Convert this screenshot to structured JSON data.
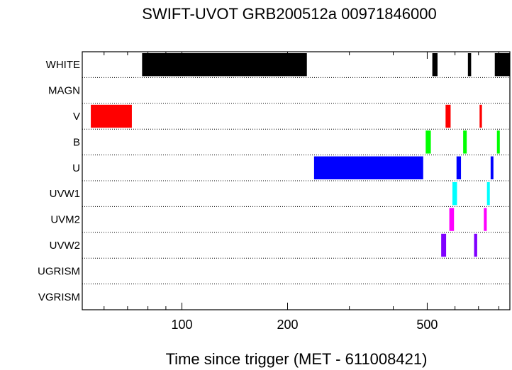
{
  "chart_data": {
    "type": "bar",
    "title": "SWIFT-UVOT GRB200512a 00971846000",
    "xlabel": "Time since trigger (MET - 611008421)",
    "ylabel": "",
    "x_scale": "log",
    "xlim": [
      52,
      860
    ],
    "xticks": [
      100,
      200,
      500
    ],
    "tick_labels": [
      "100",
      "200",
      "500"
    ],
    "grid": "dotted row separators",
    "categories": [
      "WHITE",
      "MAGN",
      "V",
      "B",
      "U",
      "UVW1",
      "UVM2",
      "UVW2",
      "UGRISM",
      "VGRISM"
    ],
    "series": [
      {
        "filter": "WHITE",
        "color": "#000000",
        "intervals": [
          [
            77,
            227
          ],
          [
            517,
            535
          ],
          [
            653,
            667
          ],
          [
            779,
            860
          ]
        ]
      },
      {
        "filter": "MAGN",
        "color": "#000000",
        "intervals": []
      },
      {
        "filter": "V",
        "color": "#ff0000",
        "intervals": [
          [
            55,
            72
          ],
          [
            564,
            583
          ],
          [
            705,
            716
          ]
        ]
      },
      {
        "filter": "B",
        "color": "#00ff00",
        "intervals": [
          [
            495,
            512
          ],
          [
            633,
            648
          ],
          [
            790,
            805
          ]
        ]
      },
      {
        "filter": "U",
        "color": "#0000ff",
        "intervals": [
          [
            238,
            487
          ],
          [
            606,
            624
          ],
          [
            758,
            772
          ]
        ]
      },
      {
        "filter": "UVW1",
        "color": "#00ffff",
        "intervals": [
          [
            590,
            608
          ],
          [
            740,
            754
          ]
        ]
      },
      {
        "filter": "UVM2",
        "color": "#ff00ff",
        "intervals": [
          [
            578,
            596
          ],
          [
            725,
            739
          ]
        ]
      },
      {
        "filter": "UVW2",
        "color": "#8000ff",
        "intervals": [
          [
            548,
            566
          ],
          [
            680,
            694
          ]
        ]
      },
      {
        "filter": "UGRISM",
        "color": "#000000",
        "intervals": []
      },
      {
        "filter": "VGRISM",
        "color": "#000000",
        "intervals": []
      }
    ]
  }
}
